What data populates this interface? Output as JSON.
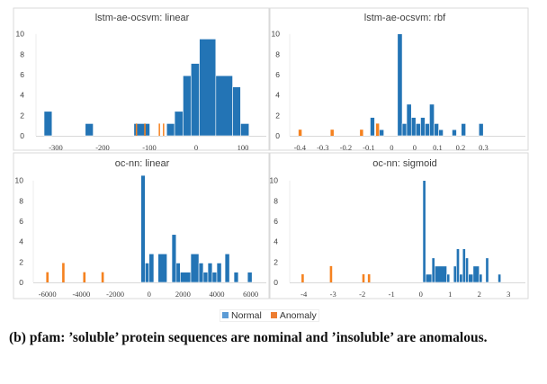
{
  "colors": {
    "normal": "#2374B5",
    "anomaly": "#F58220"
  },
  "legend": {
    "normal": "Normal",
    "anomaly": "Anomaly",
    "placement": "bottom-center"
  },
  "caption": "(b) pfam: ’soluble’ protein sequences are nominal and ’insoluble’ are anomalous.",
  "chart_data": [
    {
      "type": "bar",
      "title": "lstm-ae-ocsvm: linear",
      "xlim": [
        -340,
        120
      ],
      "ylim": [
        0,
        10
      ],
      "yticks": [
        "0",
        "2",
        "4",
        "6",
        "8",
        "10"
      ],
      "xticks": [
        {
          "v": -300,
          "label": "-300"
        },
        {
          "v": -200,
          "label": "-200"
        },
        {
          "v": -100,
          "label": "-100"
        },
        {
          "v": 0,
          "label": "0"
        },
        {
          "v": 100,
          "label": "100"
        }
      ],
      "series": [
        {
          "name": "Normal",
          "bars": [
            [
              -325,
              -308,
              2.4
            ],
            [
              -237,
              -220,
              1.2
            ],
            [
              -133,
              -99,
              1.2
            ],
            [
              -63,
              -46,
              1.2
            ],
            [
              -46,
              -28,
              2.4
            ],
            [
              -28,
              -11,
              5.9
            ],
            [
              -11,
              7,
              7.1
            ],
            [
              7,
              42,
              9.5
            ],
            [
              42,
              78,
              5.9
            ],
            [
              78,
              95,
              4.8
            ],
            [
              95,
              113,
              1.2
            ]
          ]
        },
        {
          "name": "Anomaly",
          "bars": [
            [
              -129,
              -127,
              1.2
            ],
            [
              -111,
              -108,
              1.2
            ],
            [
              -80,
              -78,
              1.2
            ],
            [
              -71,
              -69,
              1.2
            ]
          ]
        }
      ]
    },
    {
      "type": "bar",
      "title": "lstm-ae-ocsvm: rbf",
      "xlim": [
        -0.44,
        0.33
      ],
      "ylim": [
        0,
        10
      ],
      "yticks": [
        "0",
        "2",
        "4",
        "6",
        "8",
        "10"
      ],
      "xticks": [
        {
          "v": -0.4,
          "label": "-0.4"
        },
        {
          "v": -0.3125,
          "label": "-0.3"
        },
        {
          "v": -0.225,
          "label": "-0.2"
        },
        {
          "v": -0.1375,
          "label": "-0.1"
        },
        {
          "v": -0.05,
          "label": "0"
        },
        {
          "v": 0.0375,
          "label": "0"
        },
        {
          "v": 0.125,
          "label": "0.1"
        },
        {
          "v": 0.2125,
          "label": "0.2"
        },
        {
          "v": 0.3,
          "label": "0.3"
        }
      ],
      "series": [
        {
          "name": "Normal",
          "bars": [
            [
              -0.132,
              -0.115,
              1.8
            ],
            [
              -0.097,
              -0.08,
              0.6
            ],
            [
              -0.028,
              -0.01,
              10
            ],
            [
              -0.01,
              0.007,
              1.2
            ],
            [
              0.007,
              0.025,
              3.1
            ],
            [
              0.025,
              0.042,
              1.8
            ],
            [
              0.042,
              0.06,
              1.2
            ],
            [
              0.06,
              0.077,
              1.8
            ],
            [
              0.077,
              0.094,
              1.2
            ],
            [
              0.094,
              0.112,
              3.1
            ],
            [
              0.112,
              0.129,
              1.2
            ],
            [
              0.129,
              0.146,
              0.6
            ],
            [
              0.18,
              0.197,
              0.6
            ],
            [
              0.215,
              0.232,
              1.2
            ],
            [
              0.282,
              0.299,
              1.2
            ]
          ]
        },
        {
          "name": "Anomaly",
          "bars": [
            [
              -0.405,
              -0.393,
              0.6
            ],
            [
              -0.283,
              -0.271,
              0.6
            ],
            [
              -0.171,
              -0.159,
              0.6
            ],
            [
              -0.11,
              -0.098,
              1.2
            ]
          ]
        }
      ]
    },
    {
      "type": "bar",
      "title": "oc-nn: linear",
      "xlim": [
        -6800,
        6800
      ],
      "ylim": [
        0,
        10
      ],
      "yticks": [
        "0",
        "2",
        "4",
        "6",
        "8",
        "10"
      ],
      "xticks": [
        {
          "v": -6000,
          "label": "-6000"
        },
        {
          "v": -4000,
          "label": "-4000"
        },
        {
          "v": -2000,
          "label": "-2000"
        },
        {
          "v": 0,
          "label": "0"
        },
        {
          "v": 2000,
          "label": "2000"
        },
        {
          "v": 4000,
          "label": "4000"
        },
        {
          "v": 6000,
          "label": "6000"
        }
      ],
      "series": [
        {
          "name": "Normal",
          "bars": [
            [
              -480,
              -230,
              10.5
            ],
            [
              -230,
              0,
              1.9
            ],
            [
              0,
              280,
              2.8
            ],
            [
              530,
              1060,
              2.8
            ],
            [
              1345,
              1600,
              4.7
            ],
            [
              1600,
              1840,
              1.9
            ],
            [
              1840,
              2460,
              1
            ],
            [
              2460,
              2940,
              2.8
            ],
            [
              2940,
              3200,
              1.9
            ],
            [
              3200,
              3470,
              1
            ],
            [
              3470,
              3730,
              1.9
            ],
            [
              3730,
              4000,
              1
            ],
            [
              4000,
              4270,
              1.9
            ],
            [
              4480,
              4750,
              2.8
            ],
            [
              5010,
              5270,
              1
            ],
            [
              5810,
              6080,
              1
            ]
          ]
        },
        {
          "name": "Anomaly",
          "bars": [
            [
              -6070,
              -5930,
              1
            ],
            [
              -5130,
              -4990,
              1.9
            ],
            [
              -3890,
              -3750,
              1
            ],
            [
              -2810,
              -2670,
              1
            ]
          ]
        }
      ]
    },
    {
      "type": "bar",
      "title": "oc-nn: sigmoid",
      "xlim": [
        -4.5,
        3.6
      ],
      "ylim": [
        0,
        10
      ],
      "yticks": [
        "0",
        "2",
        "4",
        "6",
        "8",
        "10"
      ],
      "xticks": [
        {
          "v": -4,
          "label": "-4"
        },
        {
          "v": -3,
          "label": "-3"
        },
        {
          "v": -2,
          "label": "-2"
        },
        {
          "v": -1,
          "label": "-1"
        },
        {
          "v": 0,
          "label": "0"
        },
        {
          "v": 1,
          "label": "1"
        },
        {
          "v": 2,
          "label": "2"
        },
        {
          "v": 3,
          "label": "3"
        }
      ],
      "series": [
        {
          "name": "Normal",
          "bars": [
            [
              0.07,
              0.17,
              10
            ],
            [
              0.17,
              0.38,
              0.8
            ],
            [
              0.38,
              0.48,
              2.4
            ],
            [
              0.48,
              0.89,
              1.6
            ],
            [
              0.89,
              0.99,
              0.8
            ],
            [
              1.12,
              1.22,
              1.6
            ],
            [
              1.22,
              1.32,
              3.3
            ],
            [
              1.32,
              1.43,
              0.8
            ],
            [
              1.43,
              1.53,
              3.3
            ],
            [
              1.53,
              1.63,
              2.4
            ],
            [
              1.63,
              1.79,
              0.8
            ],
            [
              1.79,
              2.0,
              1.6
            ],
            [
              2.0,
              2.1,
              0.8
            ],
            [
              2.22,
              2.32,
              2.4
            ],
            [
              2.64,
              2.74,
              0.8
            ]
          ]
        },
        {
          "name": "Anomaly",
          "bars": [
            [
              -4.08,
              -4.0,
              0.8
            ],
            [
              -3.11,
              -3.03,
              1.6
            ],
            [
              -2.0,
              -1.92,
              0.8
            ],
            [
              -1.81,
              -1.73,
              0.8
            ]
          ]
        }
      ]
    }
  ]
}
